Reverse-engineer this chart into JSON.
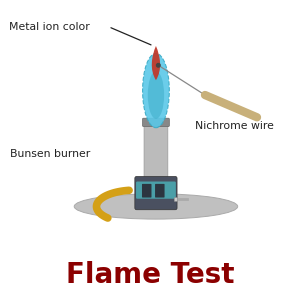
{
  "bg_color": "#ffffff",
  "title": "Flame Test",
  "title_color": "#8B0000",
  "title_fontsize": 20,
  "title_fontweight": "bold",
  "label_metal_ion": "Metal ion color",
  "label_nichrome": "Nichrome wire",
  "label_bunsen": "Bunsen burner",
  "flame_blue_color": "#5BC8E8",
  "flame_blue_edge": "#3AAAC5",
  "flame_red_color": "#C0392B",
  "wire_metal_color": "#888888",
  "wire_handle_color": "#C8B07A",
  "burner_tube_color": "#C0C0C0",
  "burner_body_color": "#4A5060",
  "burner_teal_color": "#4A9FA8",
  "burner_base_color": "#C0C0C0",
  "burner_base_edge": "#AAAAAA",
  "burner_gas_hose_color": "#D4A017",
  "annotation_color": "#222222",
  "annotation_fontsize": 7.8,
  "title_italic": false
}
